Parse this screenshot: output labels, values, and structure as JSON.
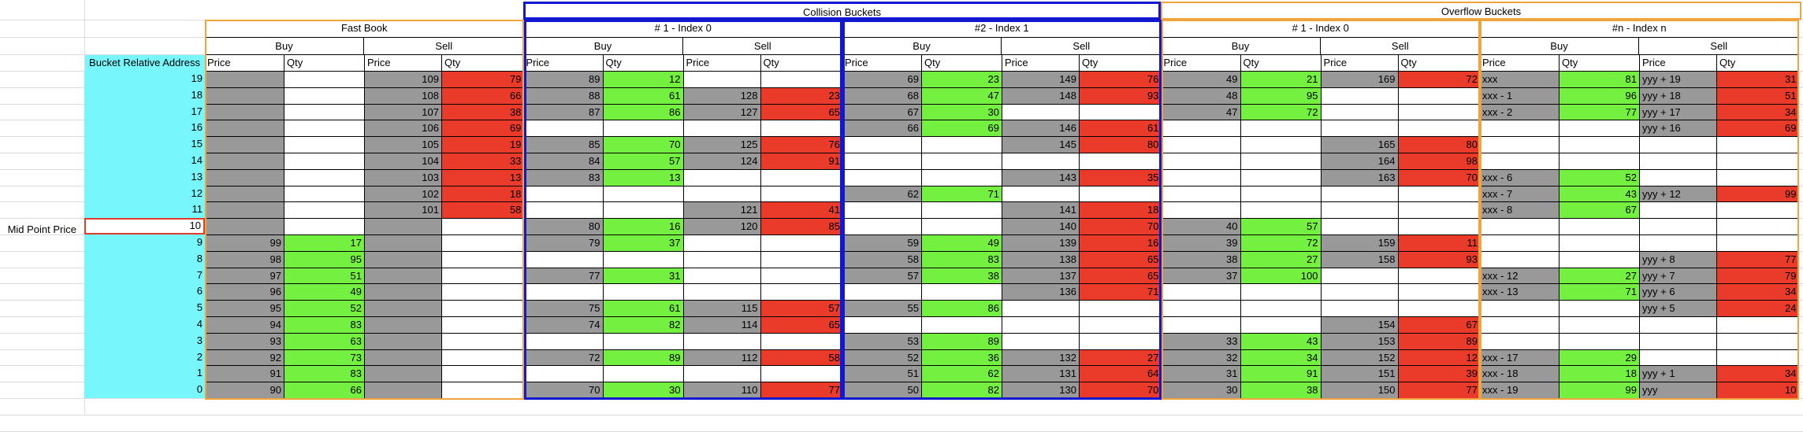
{
  "colors": {
    "bucket_address_fill": "#77f7fb",
    "price_fill": "#999999",
    "buy_qty_fill": "#74f041",
    "sell_qty_fill": "#e93a2a",
    "fast_book_border": "#f0a53c",
    "collision_border": "#1118d0",
    "overflow_border": "#f0a53c",
    "mid_border": "#e33b2a"
  },
  "headers": {
    "collision_title": "Collision Buckets",
    "overflow_title": "Overflow Buckets",
    "bucket_address_label": "Bucket Relative Address",
    "mid_point_label": "Mid Point Price",
    "buy": "Buy",
    "sell": "Sell",
    "price": "Price",
    "qty": "Qty"
  },
  "books": [
    {
      "title": "Fast Book",
      "group": "fast"
    },
    {
      "title": "# 1 - Index 0",
      "group": "collision"
    },
    {
      "title": "#2 - Index 1",
      "group": "collision"
    },
    {
      "title": "# 1 - Index 0",
      "group": "overflow"
    },
    {
      "title": "#n - Index n",
      "group": "overflow"
    }
  ],
  "rows": [
    {
      "addr": "19",
      "cells": [
        [
          "",
          "",
          "109",
          "79"
        ],
        [
          "89",
          "12",
          "",
          ""
        ],
        [
          "69",
          "23",
          "149",
          "76"
        ],
        [
          "49",
          "21",
          "169",
          "72"
        ],
        [
          "xxx",
          "81",
          "yyy + 19",
          "31"
        ]
      ]
    },
    {
      "addr": "18",
      "cells": [
        [
          "",
          "",
          "108",
          "66"
        ],
        [
          "88",
          "61",
          "128",
          "23"
        ],
        [
          "68",
          "47",
          "148",
          "93"
        ],
        [
          "48",
          "95",
          "",
          ""
        ],
        [
          "xxx - 1",
          "96",
          "yyy + 18",
          "51"
        ]
      ]
    },
    {
      "addr": "17",
      "cells": [
        [
          "",
          "",
          "107",
          "38"
        ],
        [
          "87",
          "86",
          "127",
          "65"
        ],
        [
          "67",
          "30",
          "",
          ""
        ],
        [
          "47",
          "72",
          "",
          ""
        ],
        [
          "xxx - 2",
          "77",
          "yyy + 17",
          "34"
        ]
      ]
    },
    {
      "addr": "16",
      "cells": [
        [
          "",
          "",
          "106",
          "69"
        ],
        [
          "",
          "",
          "",
          ""
        ],
        [
          "66",
          "69",
          "146",
          "61"
        ],
        [
          "",
          "",
          "",
          ""
        ],
        [
          "",
          "",
          "yyy + 16",
          "69"
        ]
      ]
    },
    {
      "addr": "15",
      "cells": [
        [
          "",
          "",
          "105",
          "19"
        ],
        [
          "85",
          "70",
          "125",
          "76"
        ],
        [
          "",
          "",
          "145",
          "80"
        ],
        [
          "",
          "",
          "165",
          "80"
        ],
        [
          "",
          "",
          "",
          ""
        ]
      ]
    },
    {
      "addr": "14",
      "cells": [
        [
          "",
          "",
          "104",
          "33"
        ],
        [
          "84",
          "57",
          "124",
          "91"
        ],
        [
          "",
          "",
          "",
          ""
        ],
        [
          "",
          "",
          "164",
          "98"
        ],
        [
          "",
          "",
          "",
          ""
        ]
      ]
    },
    {
      "addr": "13",
      "cells": [
        [
          "",
          "",
          "103",
          "13"
        ],
        [
          "83",
          "13",
          "",
          ""
        ],
        [
          "",
          "",
          "143",
          "35"
        ],
        [
          "",
          "",
          "163",
          "70"
        ],
        [
          "xxx - 6",
          "52",
          "",
          ""
        ]
      ]
    },
    {
      "addr": "12",
      "cells": [
        [
          "",
          "",
          "102",
          "18"
        ],
        [
          "",
          "",
          "",
          ""
        ],
        [
          "62",
          "71",
          "",
          ""
        ],
        [
          "",
          "",
          "",
          ""
        ],
        [
          "xxx - 7",
          "43",
          "yyy + 12",
          "99"
        ]
      ]
    },
    {
      "addr": "11",
      "cells": [
        [
          "",
          "",
          "101",
          "58"
        ],
        [
          "",
          "",
          "121",
          "41"
        ],
        [
          "",
          "",
          "141",
          "18"
        ],
        [
          "",
          "",
          "",
          ""
        ],
        [
          "xxx - 8",
          "67",
          "",
          ""
        ]
      ]
    },
    {
      "addr": "10",
      "cells": [
        [
          "",
          "",
          "",
          ""
        ],
        [
          "80",
          "16",
          "120",
          "85"
        ],
        [
          "",
          "",
          "140",
          "70"
        ],
        [
          "40",
          "57",
          "",
          ""
        ],
        [
          "",
          "",
          "",
          ""
        ]
      ]
    },
    {
      "addr": "9",
      "cells": [
        [
          "99",
          "17",
          "",
          ""
        ],
        [
          "79",
          "37",
          "",
          ""
        ],
        [
          "59",
          "49",
          "139",
          "16"
        ],
        [
          "39",
          "72",
          "159",
          "11"
        ],
        [
          "",
          "",
          "",
          ""
        ]
      ]
    },
    {
      "addr": "8",
      "cells": [
        [
          "98",
          "95",
          "",
          ""
        ],
        [
          "",
          "",
          "",
          ""
        ],
        [
          "58",
          "83",
          "138",
          "65"
        ],
        [
          "38",
          "27",
          "158",
          "93"
        ],
        [
          "",
          "",
          "yyy + 8",
          "77"
        ]
      ]
    },
    {
      "addr": "7",
      "cells": [
        [
          "97",
          "51",
          "",
          ""
        ],
        [
          "77",
          "31",
          "",
          ""
        ],
        [
          "57",
          "38",
          "137",
          "65"
        ],
        [
          "37",
          "100",
          "",
          ""
        ],
        [
          "xxx - 12",
          "27",
          "yyy + 7",
          "79"
        ]
      ]
    },
    {
      "addr": "6",
      "cells": [
        [
          "96",
          "49",
          "",
          ""
        ],
        [
          "",
          "",
          "",
          ""
        ],
        [
          "",
          "",
          "136",
          "71"
        ],
        [
          "",
          "",
          "",
          ""
        ],
        [
          "xxx - 13",
          "71",
          "yyy + 6",
          "34"
        ]
      ]
    },
    {
      "addr": "5",
      "cells": [
        [
          "95",
          "52",
          "",
          ""
        ],
        [
          "75",
          "61",
          "115",
          "57"
        ],
        [
          "55",
          "86",
          "",
          ""
        ],
        [
          "",
          "",
          "",
          ""
        ],
        [
          "",
          "",
          "yyy + 5",
          "24"
        ]
      ]
    },
    {
      "addr": "4",
      "cells": [
        [
          "94",
          "83",
          "",
          ""
        ],
        [
          "74",
          "82",
          "114",
          "65"
        ],
        [
          "",
          "",
          "",
          ""
        ],
        [
          "",
          "",
          "154",
          "67"
        ],
        [
          "",
          "",
          "",
          ""
        ]
      ]
    },
    {
      "addr": "3",
      "cells": [
        [
          "93",
          "63",
          "",
          ""
        ],
        [
          "",
          "",
          "",
          ""
        ],
        [
          "53",
          "89",
          "",
          ""
        ],
        [
          "33",
          "43",
          "153",
          "89"
        ],
        [
          "",
          "",
          "",
          ""
        ]
      ]
    },
    {
      "addr": "2",
      "cells": [
        [
          "92",
          "73",
          "",
          ""
        ],
        [
          "72",
          "89",
          "112",
          "58"
        ],
        [
          "52",
          "36",
          "132",
          "27"
        ],
        [
          "32",
          "34",
          "152",
          "12"
        ],
        [
          "xxx - 17",
          "29",
          "",
          ""
        ]
      ]
    },
    {
      "addr": "1",
      "cells": [
        [
          "91",
          "83",
          "",
          ""
        ],
        [
          "",
          "",
          "",
          ""
        ],
        [
          "51",
          "62",
          "131",
          "64"
        ],
        [
          "31",
          "91",
          "151",
          "39"
        ],
        [
          "xxx - 18",
          "18",
          "yyy + 1",
          "34"
        ]
      ]
    },
    {
      "addr": "0",
      "cells": [
        [
          "90",
          "66",
          "",
          ""
        ],
        [
          "70",
          "30",
          "110",
          "77"
        ],
        [
          "50",
          "82",
          "130",
          "70"
        ],
        [
          "30",
          "38",
          "150",
          "77"
        ],
        [
          "xxx - 19",
          "99",
          "yyy",
          "10"
        ]
      ]
    }
  ]
}
